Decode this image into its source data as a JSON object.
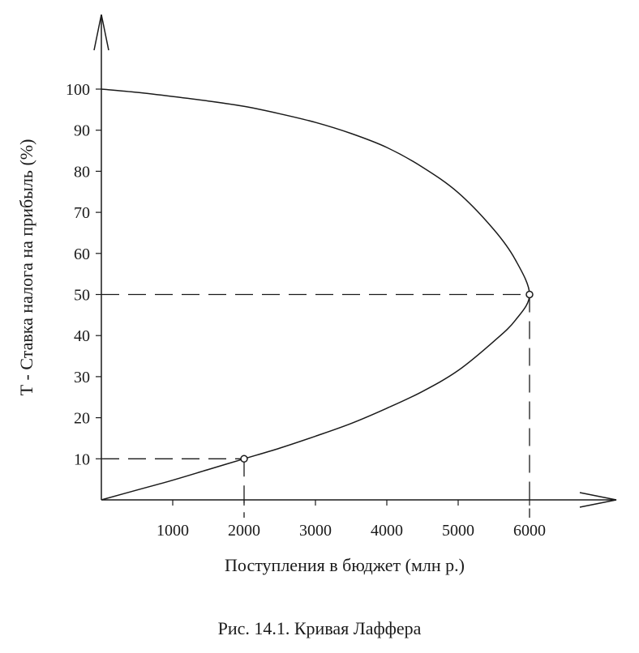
{
  "chart_data": {
    "type": "line",
    "title": "",
    "caption": "Рис. 14.1. Кривая Лаффера",
    "xlabel": "Поступления в бюджет (млн р.)",
    "ylabel": "Т - Ставка налога на прибыль (%)",
    "xlim": [
      0,
      7000
    ],
    "ylim": [
      0,
      100
    ],
    "x_ticks": [
      1000,
      2000,
      3000,
      4000,
      5000,
      6000
    ],
    "y_ticks": [
      10,
      20,
      30,
      40,
      50,
      60,
      70,
      80,
      90,
      100
    ],
    "grid": false,
    "series": [
      {
        "x": [
          0,
          500,
          1000,
          1500,
          2000,
          2500,
          3000,
          3500,
          4000,
          4500,
          5000,
          5500,
          5800,
          6000,
          5800,
          5500,
          5000,
          4500,
          4000,
          3500,
          3000,
          2500,
          2000,
          1500,
          1000,
          500,
          0
        ],
        "y": [
          0,
          2.4,
          4.8,
          7.4,
          10,
          12.6,
          15.5,
          18.6,
          22.3,
          26.4,
          31.5,
          38.6,
          43.7,
          50,
          58.5,
          65.8,
          74.8,
          81,
          85.8,
          89.2,
          91.9,
          94,
          95.8,
          97.1,
          98.2,
          99.2,
          100
        ]
      }
    ],
    "highlighted_points": [
      {
        "x": 2000,
        "y": 10
      },
      {
        "x": 6000,
        "y": 50
      }
    ],
    "colors": {
      "line": "#1a1a1a",
      "background": "#ffffff"
    }
  }
}
